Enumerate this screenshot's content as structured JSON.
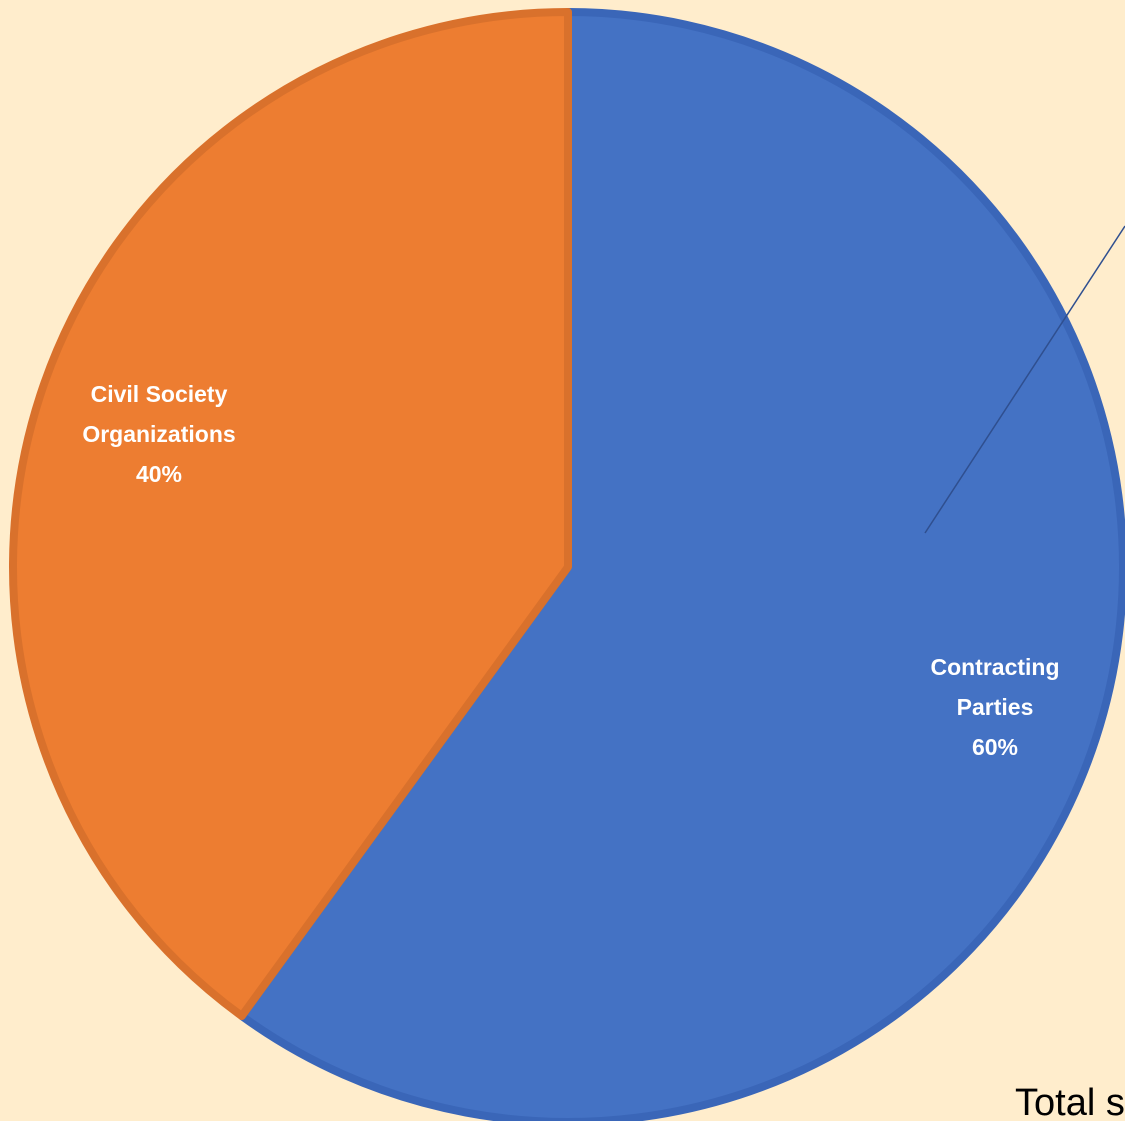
{
  "colors": {
    "background": "#FFEDCC",
    "text": "#000000",
    "label_on_slice": "#FFFFFF"
  },
  "chart_data": {
    "type": "pie",
    "title": "",
    "start_angle_deg": 0,
    "direction": "clockwise",
    "slices": [
      {
        "label_lines": [
          "Contracting",
          "Parties"
        ],
        "percent_label": "60%",
        "value": 60,
        "color": "#4472C4",
        "border_color": "#3A66B8"
      },
      {
        "label_lines": [
          "Civil Society",
          "Organizations"
        ],
        "percent_label": "40%",
        "value": 40,
        "color": "#ED7D31",
        "border_color": "#D9712C"
      }
    ],
    "footer_text": "Total s"
  }
}
